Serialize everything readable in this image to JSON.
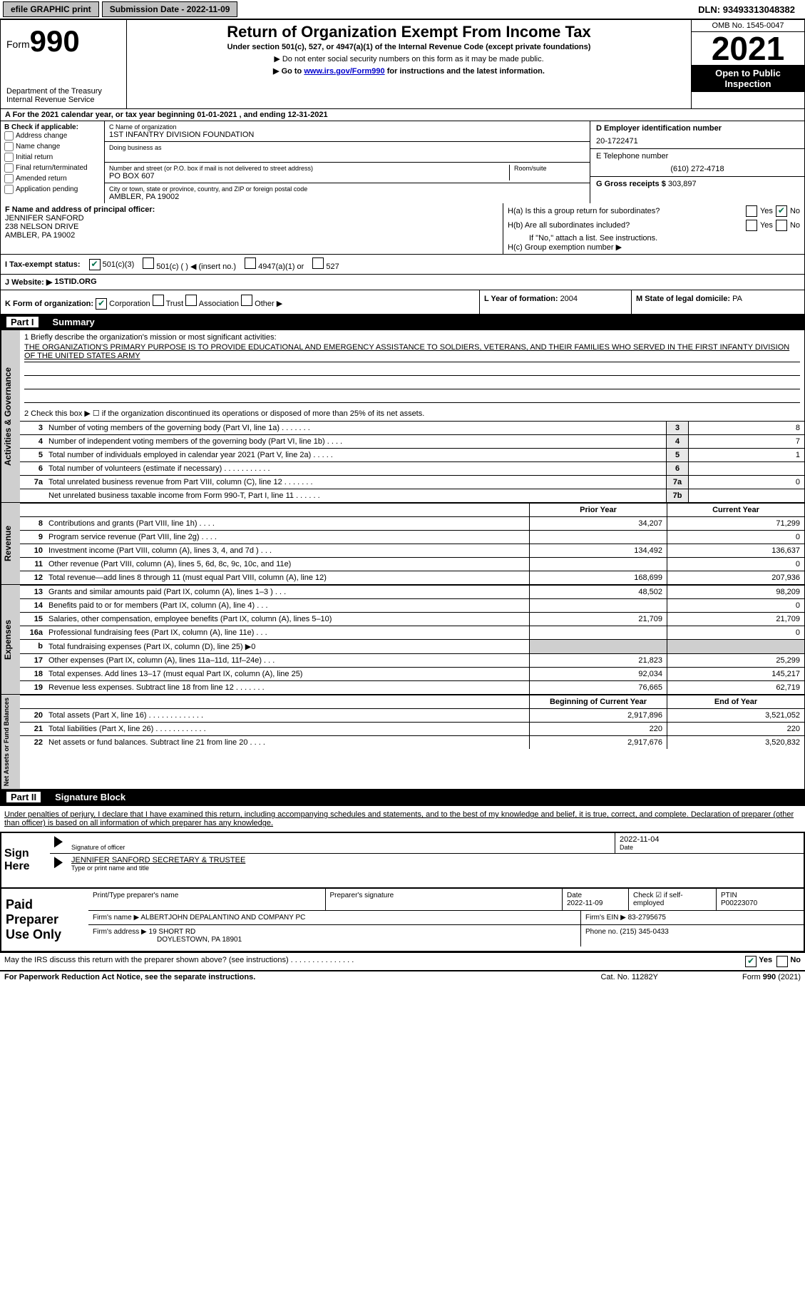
{
  "topbar": {
    "efile": "efile GRAPHIC print",
    "submission_label": "Submission Date - ",
    "submission_date": "2022-11-09",
    "dln_label": "DLN: ",
    "dln": "93493313048382"
  },
  "header": {
    "form_label": "Form",
    "form_number": "990",
    "dept": "Department of the Treasury",
    "irs": "Internal Revenue Service",
    "title": "Return of Organization Exempt From Income Tax",
    "subtitle": "Under section 501(c), 527, or 4947(a)(1) of the Internal Revenue Code (except private foundations)",
    "note1": "▶ Do not enter social security numbers on this form as it may be made public.",
    "note2_pre": "▶ Go to ",
    "note2_link": "www.irs.gov/Form990",
    "note2_post": " for instructions and the latest information.",
    "omb": "OMB No. 1545-0047",
    "year": "2021",
    "open": "Open to Public Inspection"
  },
  "row_a": "A For the 2021 calendar year, or tax year beginning 01-01-2021    , and ending 12-31-2021",
  "col_b": {
    "label": "B Check if applicable:",
    "opts": [
      "Address change",
      "Name change",
      "Initial return",
      "Final return/terminated",
      "Amended return",
      "Application pending"
    ]
  },
  "col_c": {
    "name_label": "C Name of organization",
    "name": "1ST INFANTRY DIVISION FOUNDATION",
    "dba_label": "Doing business as",
    "addr_label": "Number and street (or P.O. box if mail is not delivered to street address)",
    "addr": "PO BOX 607",
    "room_label": "Room/suite",
    "city_label": "City or town, state or province, country, and ZIP or foreign postal code",
    "city": "AMBLER, PA  19002"
  },
  "col_d": {
    "ein_label": "D Employer identification number",
    "ein": "20-1722471",
    "phone_label": "E Telephone number",
    "phone": "(610) 272-4718",
    "gross_label": "G Gross receipts $ ",
    "gross": "303,897"
  },
  "col_f": {
    "label": "F Name and address of principal officer:",
    "name": "JENNIFER SANFORD",
    "addr1": "238 NELSON DRIVE",
    "addr2": "AMBLER, PA   19002"
  },
  "col_h": {
    "ha": "H(a)  Is this a group return for subordinates?",
    "hb": "H(b)  Are all subordinates included?",
    "hb_note": "If \"No,\" attach a list. See instructions.",
    "hc": "H(c)  Group exemption number ▶",
    "yes": "Yes",
    "no": "No"
  },
  "exempt": {
    "label": "I  Tax-exempt status:",
    "opt1": "501(c)(3)",
    "opt2": "501(c) (   ) ◀ (insert no.)",
    "opt3": "4947(a)(1) or",
    "opt4": "527"
  },
  "row_j": {
    "label": "J  Website: ▶ ",
    "val": "1STID.ORG"
  },
  "row_k": {
    "label": "K Form of organization:",
    "corp": "Corporation",
    "trust": "Trust",
    "assoc": "Association",
    "other": "Other ▶"
  },
  "row_l": {
    "label": "L Year of formation: ",
    "val": "2004"
  },
  "row_m": {
    "label": "M State of legal domicile: ",
    "val": "PA"
  },
  "part1": {
    "title": "Part I",
    "name": "Summary"
  },
  "mission": {
    "label": "1   Briefly describe the organization's mission or most significant activities:",
    "text": "THE ORGANIZATION'S PRIMARY PURPOSE IS TO PROVIDE EDUCATIONAL AND EMERGENCY ASSISTANCE TO SOLDIERS, VETERANS, AND THEIR FAMILIES WHO SERVED IN THE FIRST INFANTY DIVISION OF THE UNITED STATES ARMY"
  },
  "line2": "2   Check this box ▶ ☐ if the organization discontinued its operations or disposed of more than 25% of its net assets.",
  "gov_rows": [
    {
      "n": "3",
      "desc": "Number of voting members of the governing body (Part VI, line 1a)   .    .    .    .    .    .    .",
      "box": "3",
      "val": "8"
    },
    {
      "n": "4",
      "desc": "Number of independent voting members of the governing body (Part VI, line 1b)  .    .    .    .",
      "box": "4",
      "val": "7"
    },
    {
      "n": "5",
      "desc": "Total number of individuals employed in calendar year 2021 (Part V, line 2a) .    .    .    .    .",
      "box": "5",
      "val": "1"
    },
    {
      "n": "6",
      "desc": "Total number of volunteers (estimate if necessary)    .    .    .    .    .    .    .    .    .    .    .",
      "box": "6",
      "val": ""
    },
    {
      "n": "7a",
      "desc": "Total unrelated business revenue from Part VIII, column (C), line 12   .    .    .    .    .    .    .",
      "box": "7a",
      "val": "0"
    },
    {
      "n": "",
      "desc": "Net unrelated business taxable income from Form 990-T, Part I, line 11  .    .    .    .    .    .",
      "box": "7b",
      "val": ""
    }
  ],
  "rev_header": {
    "prior": "Prior Year",
    "current": "Current Year"
  },
  "rev_rows": [
    {
      "n": "8",
      "desc": "Contributions and grants (Part VIII, line 1h)   .    .    .    .",
      "prior": "34,207",
      "current": "71,299"
    },
    {
      "n": "9",
      "desc": "Program service revenue (Part VIII, line 2g)  .    .    .    .",
      "prior": "",
      "current": "0"
    },
    {
      "n": "10",
      "desc": "Investment income (Part VIII, column (A), lines 3, 4, and 7d )   .    .    .",
      "prior": "134,492",
      "current": "136,637"
    },
    {
      "n": "11",
      "desc": "Other revenue (Part VIII, column (A), lines 5, 6d, 8c, 9c, 10c, and 11e)",
      "prior": "",
      "current": "0"
    },
    {
      "n": "12",
      "desc": "Total revenue—add lines 8 through 11 (must equal Part VIII, column (A), line 12)",
      "prior": "168,699",
      "current": "207,936"
    }
  ],
  "exp_rows": [
    {
      "n": "13",
      "desc": "Grants and similar amounts paid (Part IX, column (A), lines 1–3 )  .    .    .",
      "prior": "48,502",
      "current": "98,209"
    },
    {
      "n": "14",
      "desc": "Benefits paid to or for members (Part IX, column (A), line 4)  .    .    .",
      "prior": "",
      "current": "0"
    },
    {
      "n": "15",
      "desc": "Salaries, other compensation, employee benefits (Part IX, column (A), lines 5–10)",
      "prior": "21,709",
      "current": "21,709"
    },
    {
      "n": "16a",
      "desc": "Professional fundraising fees (Part IX, column (A), line 11e)  .    .    .",
      "prior": "",
      "current": "0"
    },
    {
      "n": "b",
      "desc": "Total fundraising expenses (Part IX, column (D), line 25) ▶0",
      "prior": "shaded",
      "current": "shaded"
    },
    {
      "n": "17",
      "desc": "Other expenses (Part IX, column (A), lines 11a–11d, 11f–24e)  .    .    .",
      "prior": "21,823",
      "current": "25,299"
    },
    {
      "n": "18",
      "desc": "Total expenses. Add lines 13–17 (must equal Part IX, column (A), line 25)",
      "prior": "92,034",
      "current": "145,217"
    },
    {
      "n": "19",
      "desc": "Revenue less expenses. Subtract line 18 from line 12  .    .    .    .    .    .    .",
      "prior": "76,665",
      "current": "62,719"
    }
  ],
  "net_header": {
    "prior": "Beginning of Current Year",
    "current": "End of Year"
  },
  "net_rows": [
    {
      "n": "20",
      "desc": "Total assets (Part X, line 16)  .    .    .    .    .    .    .    .    .    .    .    .    .",
      "prior": "2,917,896",
      "current": "3,521,052"
    },
    {
      "n": "21",
      "desc": "Total liabilities (Part X, line 26)   .    .    .    .    .    .    .    .    .    .    .    .",
      "prior": "220",
      "current": "220"
    },
    {
      "n": "22",
      "desc": "Net assets or fund balances. Subtract line 21 from line 20   .    .    .    .",
      "prior": "2,917,676",
      "current": "3,520,832"
    }
  ],
  "part2": {
    "title": "Part II",
    "name": "Signature Block"
  },
  "sig_text": "Under penalties of perjury, I declare that I have examined this return, including accompanying schedules and statements, and to the best of my knowledge and belief, it is true, correct, and complete. Declaration of preparer (other than officer) is based on all information of which preparer has any knowledge.",
  "sign_here": "Sign Here",
  "sig": {
    "officer_label": "Signature of officer",
    "date_label": "Date",
    "date": "2022-11-04",
    "name": "JENNIFER SANFORD  SECRETARY & TRUSTEE",
    "name_label": "Type or print name and title"
  },
  "paid_label": "Paid Preparer Use Only",
  "paid": {
    "h1": "Print/Type preparer's name",
    "h2": "Preparer's signature",
    "h3_label": "Date",
    "h3": "2022-11-09",
    "h4_label": "Check ☑ if self-employed",
    "h5_label": "PTIN",
    "h5": "P00223070",
    "firm_name_label": "Firm's name      ▶ ",
    "firm_name": "ALBERTJOHN DEPALANTINO AND COMPANY PC",
    "firm_ein_label": "Firm's EIN ▶ ",
    "firm_ein": "83-2795675",
    "firm_addr_label": "Firm's address ▶ ",
    "firm_addr1": "19 SHORT RD",
    "firm_addr2": "DOYLESTOWN, PA   18901",
    "firm_phone_label": "Phone no. ",
    "firm_phone": "(215) 345-0433"
  },
  "discuss": {
    "text": "May the IRS discuss this return with the preparer shown above? (see instructions)   .    .    .    .    .    .    .    .    .    .    .    .    .    .    .",
    "yes": "Yes",
    "no": "No"
  },
  "footer": {
    "left": "For Paperwork Reduction Act Notice, see the separate instructions.",
    "center": "Cat. No. 11282Y",
    "right": "Form 990 (2021)"
  },
  "vert": {
    "gov": "Activities & Governance",
    "rev": "Revenue",
    "exp": "Expenses",
    "net": "Net Assets or Fund Balances"
  }
}
